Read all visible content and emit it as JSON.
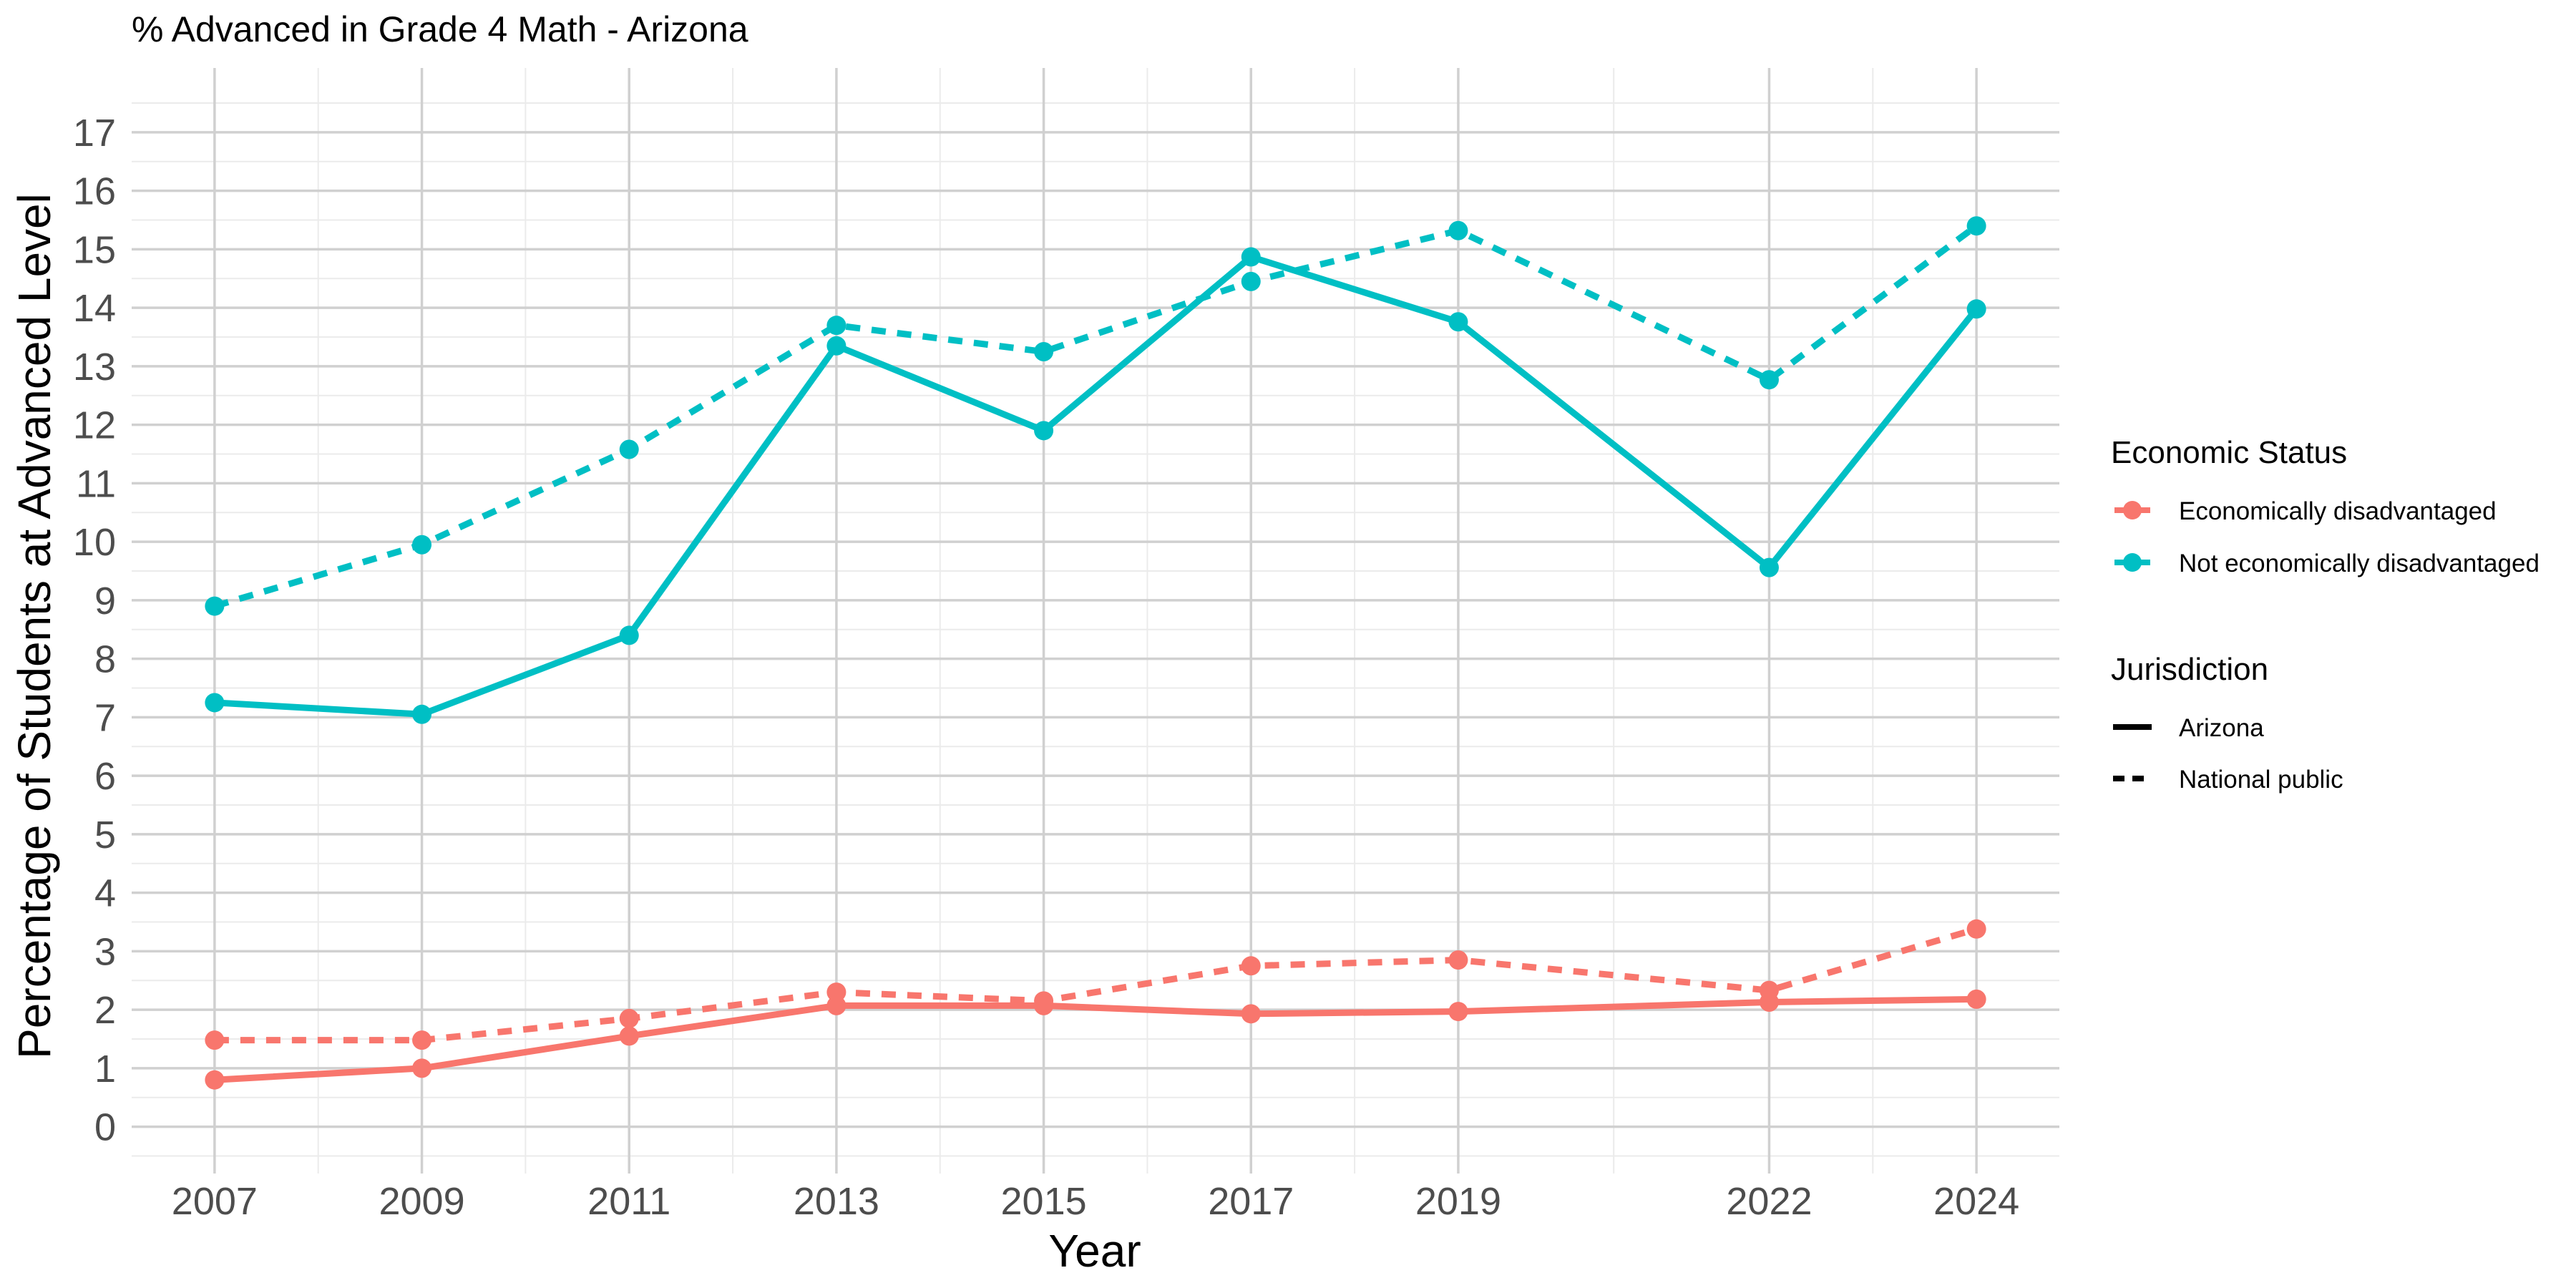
{
  "chart_data": {
    "type": "line",
    "title": "% Advanced in Grade 4 Math - Arizona",
    "xlabel": "Year",
    "ylabel": "Percentage of Students at Advanced Level",
    "x_ticks": [
      2007,
      2009,
      2011,
      2013,
      2015,
      2017,
      2019,
      2022,
      2024
    ],
    "xlim": [
      2006.2,
      2024.8
    ],
    "y_ticks": [
      0,
      1,
      2,
      3,
      4,
      5,
      6,
      7,
      8,
      9,
      10,
      11,
      12,
      13,
      14,
      15,
      16,
      17
    ],
    "ylim": [
      -0.8,
      18.1
    ],
    "grid": true,
    "legend_position": "right",
    "x": [
      2007,
      2009,
      2011,
      2013,
      2015,
      2017,
      2019,
      2022,
      2024
    ],
    "series": [
      {
        "economic_status": "Economically disadvantaged",
        "jurisdiction": "Arizona",
        "color": "#F8766D",
        "line": "solid",
        "values": [
          0.8,
          1.0,
          1.55,
          2.07,
          2.07,
          1.93,
          1.97,
          2.13,
          2.18
        ]
      },
      {
        "economic_status": "Economically disadvantaged",
        "jurisdiction": "National public",
        "color": "#F8766D",
        "line": "dashed",
        "values": [
          1.48,
          1.48,
          1.85,
          2.3,
          2.15,
          2.75,
          2.85,
          2.33,
          3.38
        ]
      },
      {
        "economic_status": "Not economically disadvantaged",
        "jurisdiction": "Arizona",
        "color": "#00BFC4",
        "line": "solid",
        "values": [
          7.25,
          7.05,
          8.4,
          13.35,
          11.9,
          14.87,
          13.76,
          9.56,
          13.98
        ]
      },
      {
        "economic_status": "Not economically disadvantaged",
        "jurisdiction": "National public",
        "color": "#00BFC4",
        "line": "dashed",
        "values": [
          8.9,
          9.95,
          11.58,
          13.7,
          13.25,
          14.45,
          15.32,
          12.77,
          15.4
        ]
      }
    ],
    "legend": {
      "economic_status": {
        "title": "Economic Status",
        "entries": [
          {
            "label": "Economically disadvantaged",
            "color": "#F8766D"
          },
          {
            "label": "Not economically disadvantaged",
            "color": "#00BFC4"
          }
        ]
      },
      "jurisdiction": {
        "title": "Jurisdiction",
        "entries": [
          {
            "label": "Arizona",
            "line": "solid"
          },
          {
            "label": "National public",
            "line": "dashed"
          }
        ]
      }
    }
  }
}
